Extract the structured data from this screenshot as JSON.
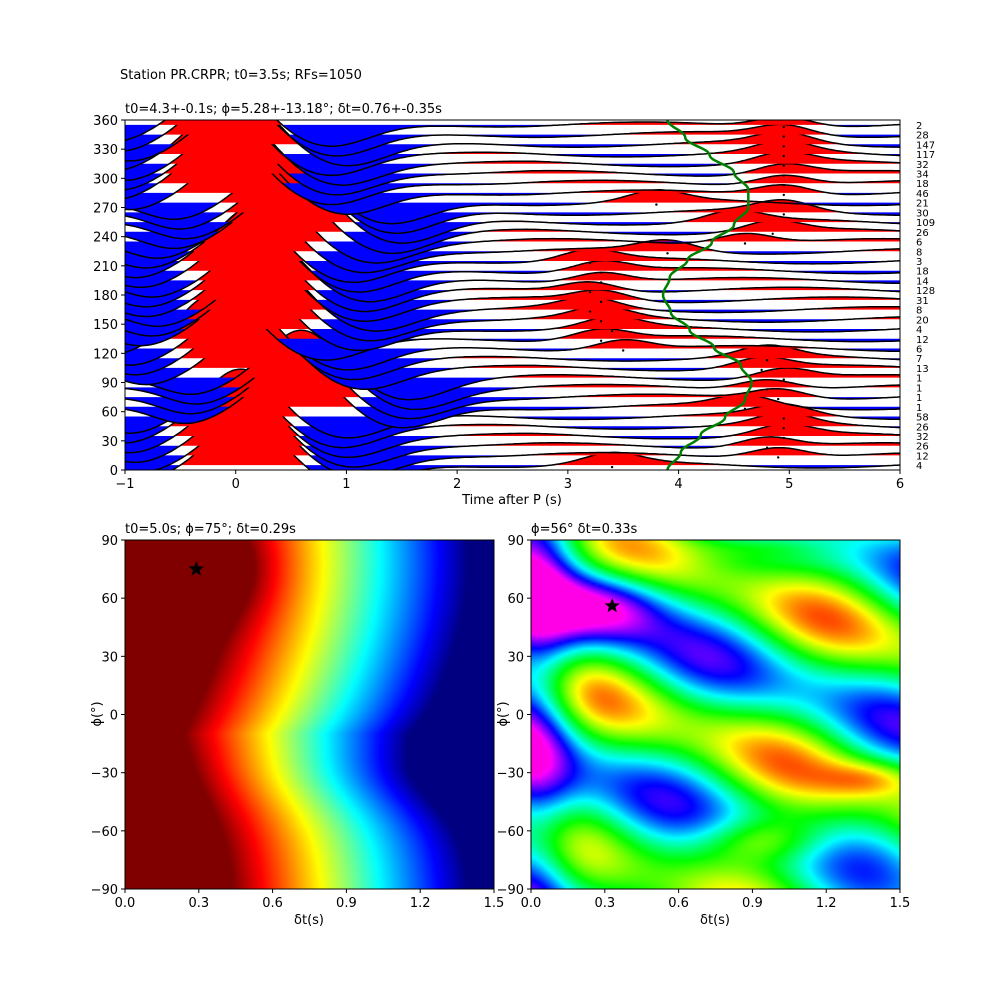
{
  "figure": {
    "title": "Station PR.CRPR; t0=3.5s; RFs=1050"
  },
  "chart_data": [
    {
      "type": "line",
      "name": "receiver-function-gather",
      "title": "t0=4.3+-0.1s; ϕ=5.28+-13.18°; δt=0.76+-0.35s",
      "xlabel": "Time after P (s)",
      "ylabel": "",
      "xlim": [
        -1,
        6
      ],
      "ylim": [
        0,
        360
      ],
      "xticks": [
        -1,
        0,
        1,
        2,
        3,
        4,
        5,
        6
      ],
      "yticks": [
        0,
        30,
        60,
        90,
        120,
        150,
        180,
        210,
        240,
        270,
        300,
        330,
        360
      ],
      "fill_positive_color": "#ff0000",
      "fill_negative_color": "#0000ff",
      "trace_color": "#000000",
      "curve_color": "#008000",
      "bin_backazimuths": [
        5,
        15,
        25,
        35,
        45,
        55,
        65,
        75,
        85,
        95,
        105,
        115,
        125,
        135,
        145,
        155,
        165,
        175,
        185,
        195,
        205,
        215,
        225,
        235,
        245,
        255,
        265,
        275,
        285,
        295,
        305,
        315,
        325,
        335,
        345,
        355
      ],
      "bin_counts": [
        "4",
        "12",
        "26",
        "32",
        "26",
        "58",
        "1",
        "1",
        "1",
        "1",
        "13",
        "7",
        "6",
        "12",
        "4",
        "20",
        "8",
        "31",
        "128",
        "14",
        "18",
        "3",
        "8",
        "6",
        "26",
        "109",
        "30",
        "21",
        "46",
        "18",
        "34",
        "32",
        "117",
        "147",
        "28",
        "2"
      ],
      "main_peak_time": [
        0.1,
        0.15,
        0.1,
        0.05,
        0.0,
        0.05,
        0.55,
        0.6,
        0.65,
        0.6,
        0.2,
        0.1,
        0.05,
        -0.15,
        0.15,
        0.25,
        0.3,
        0.2,
        0.2,
        0.25,
        0.15,
        0.1,
        0.2,
        0.3,
        0.45,
        0.55,
        0.5,
        0.45,
        0.05,
        -0.1,
        -0.05,
        0.0,
        -0.1,
        0.05,
        -0.05,
        -0.1
      ],
      "secondary_peak_time": [
        3.4,
        4.9,
        4.8,
        4.95,
        4.95,
        4.95,
        4.6,
        4.9,
        4.8,
        4.95,
        4.75,
        4.8,
        3.5,
        3.3,
        3.4,
        3.3,
        3.2,
        3.3,
        3.2,
        3.3,
        3.3,
        3.2,
        3.9,
        4.6,
        4.85,
        4.5,
        4.95,
        3.8,
        4.95,
        4.95,
        4.95,
        4.95,
        4.95,
        4.95,
        4.95,
        4.95
      ],
      "curve_t": [
        3.9,
        4.02,
        4.2,
        4.42,
        4.6,
        4.66,
        4.56,
        4.32,
        4.1,
        3.93,
        3.86,
        3.92,
        4.08,
        4.3,
        4.5,
        4.63,
        4.63,
        4.5,
        4.28,
        4.06,
        3.9
      ],
      "curve_baz": [
        0,
        18,
        36,
        54,
        72,
        90,
        108,
        126,
        144,
        162,
        180,
        198,
        216,
        234,
        252,
        270,
        288,
        306,
        324,
        342,
        360
      ]
    },
    {
      "type": "heatmap",
      "name": "energy-grid",
      "title": "t0=5.0s; ϕ=75°; δt=0.29s",
      "xlabel": "δt(s)",
      "ylabel": "ϕ(°)",
      "xlim": [
        0,
        1.5
      ],
      "ylim": [
        -90,
        90
      ],
      "xticks": [
        "0.0",
        "0.3",
        "0.6",
        "0.9",
        "1.2",
        "1.5"
      ],
      "yticks": [
        "90",
        "60",
        "30",
        "0",
        "−30",
        "−60",
        "−90"
      ],
      "colormap": "jet",
      "best": {
        "dt": 0.29,
        "phi": 75
      }
    },
    {
      "type": "heatmap",
      "name": "transverse-energy-grid",
      "title": "ϕ=56° δt=0.33s",
      "xlabel": "δt(s)",
      "ylabel": "ϕ(°)",
      "xlim": [
        0,
        1.5
      ],
      "ylim": [
        -90,
        90
      ],
      "xticks": [
        "0.0",
        "0.3",
        "0.6",
        "0.9",
        "1.2",
        "1.5"
      ],
      "yticks": [
        "90",
        "60",
        "30",
        "0",
        "−30",
        "−60",
        "−90"
      ],
      "colormap": "hsv",
      "best": {
        "dt": 0.33,
        "phi": 56
      }
    }
  ]
}
